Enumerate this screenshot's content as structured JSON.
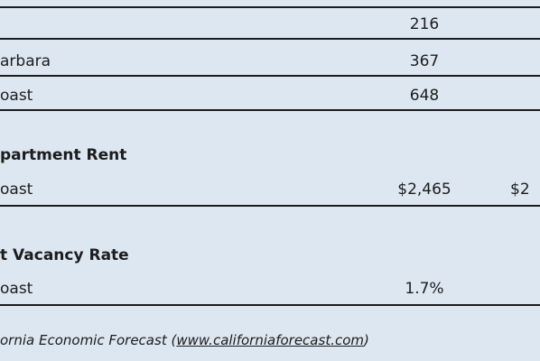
{
  "table": {
    "rows": [
      {
        "label": "",
        "values": [
          "216"
        ]
      },
      {
        "label": "arbara",
        "values": [
          "367"
        ]
      },
      {
        "label": "oast",
        "values": [
          "648"
        ]
      }
    ]
  },
  "sections": [
    {
      "title": "partment Rent",
      "rows": [
        {
          "label": "oast",
          "values": [
            "$2,465",
            "$2"
          ]
        }
      ]
    },
    {
      "title": "t Vacancy Rate",
      "rows": [
        {
          "label": "oast",
          "values": [
            "1.7%"
          ]
        }
      ]
    }
  ],
  "footer": {
    "text": "ornia Economic Forecast (",
    "link": "www.californiaforecast.com",
    "end": ")"
  }
}
